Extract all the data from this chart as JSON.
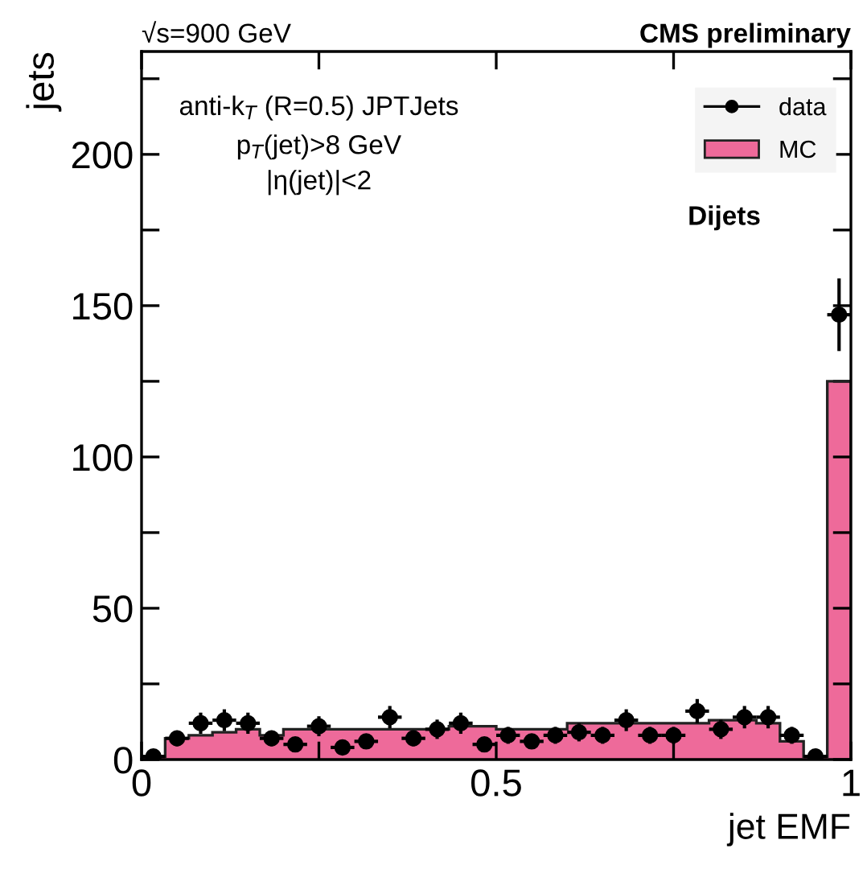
{
  "chart_data": {
    "type": "histogram",
    "xlabel": "jet EMF",
    "ylabel": "jets",
    "annotations": [
      "√s=900 GeV",
      "CMS preliminary",
      "anti-k$_{T}$ (R=0.5) JPTJets",
      "p$_{T}$(jet)>8 GeV",
      "|η(jet)|<2",
      "Dijets"
    ],
    "bins": [
      0,
      0.0333,
      0.0667,
      0.1,
      0.1333,
      0.1667,
      0.2,
      0.2333,
      0.2667,
      0.3,
      0.3333,
      0.3667,
      0.4,
      0.4333,
      0.4667,
      0.5,
      0.5333,
      0.5667,
      0.6,
      0.6333,
      0.6667,
      0.7,
      0.7333,
      0.7667,
      0.8,
      0.8333,
      0.8667,
      0.9,
      0.9333,
      0.9667,
      1
    ],
    "series": [
      {
        "name": "data",
        "type": "scatter",
        "color": "#000000",
        "marker": "circle",
        "x": [
          0.0167,
          0.05,
          0.0833,
          0.1167,
          0.15,
          0.1833,
          0.2167,
          0.25,
          0.2833,
          0.3167,
          0.35,
          0.3833,
          0.4167,
          0.45,
          0.4833,
          0.5167,
          0.55,
          0.5833,
          0.6167,
          0.65,
          0.6833,
          0.7167,
          0.75,
          0.7833,
          0.8167,
          0.85,
          0.8833,
          0.9167,
          0.95,
          0.9833
        ],
        "values": [
          1,
          7,
          12,
          13,
          12,
          7,
          5,
          11,
          4,
          6,
          14,
          7,
          10,
          12,
          5,
          8,
          6,
          8,
          9,
          8,
          13,
          8,
          8,
          16,
          10,
          14,
          14,
          8,
          1,
          147
        ],
        "errors": [
          1,
          2.6,
          3.5,
          3.6,
          3.5,
          2.6,
          2.2,
          3.3,
          2,
          2.4,
          3.7,
          2.6,
          3.2,
          3.5,
          2.2,
          2.8,
          2.4,
          2.8,
          3,
          2.8,
          3.6,
          2.8,
          2.8,
          4,
          3.2,
          3.7,
          3.7,
          2.8,
          1,
          12
        ],
        "xerrors": [
          0.0167,
          0.0167,
          0.0167,
          0.0167,
          0.0167,
          0.0167,
          0.0167,
          0.0167,
          0.0167,
          0.0167,
          0.0167,
          0.0167,
          0.0167,
          0.0167,
          0.0167,
          0.0167,
          0.0167,
          0.0167,
          0.0167,
          0.0167,
          0.0167,
          0.0167,
          0.0167,
          0.0167,
          0.0167,
          0.0167,
          0.0167,
          0.0167,
          0.0167,
          0.0167
        ]
      },
      {
        "name": "MC",
        "color": "#ee6a9a",
        "values": [
          1,
          7,
          8,
          9,
          10,
          8,
          10,
          10,
          10,
          10,
          10,
          10,
          10,
          11,
          11,
          10,
          10,
          10,
          12,
          12,
          12,
          12,
          12,
          12,
          13,
          13,
          12,
          6,
          1,
          125
        ]
      }
    ],
    "xlim": [
      0,
      1
    ],
    "ylim": [
      0,
      234
    ],
    "xticks": [
      0,
      {
        "value": 0.25,
        "label": null
      },
      0.5,
      {
        "value": 0.75,
        "label": null
      },
      1
    ],
    "yticks": [
      0,
      {
        "value": 25,
        "label": null
      },
      50,
      {
        "value": 75,
        "label": null
      },
      100,
      {
        "value": 125,
        "label": null
      },
      150,
      {
        "value": 175,
        "label": null
      },
      200,
      {
        "value": 225,
        "label": null
      }
    ],
    "grid": false,
    "legend": "top right"
  }
}
